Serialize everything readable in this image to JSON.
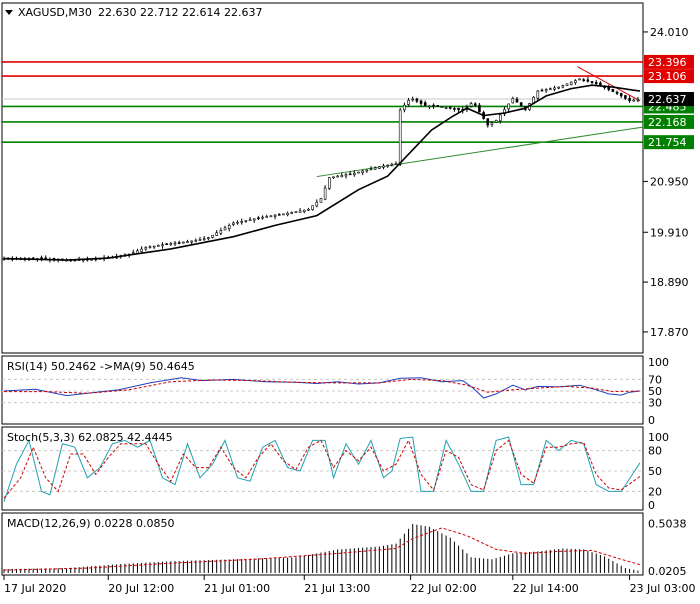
{
  "header": {
    "symbol_label": "XAGUSD,M30",
    "ohlc_label": "22.630 22.712 22.614 22.637"
  },
  "colors": {
    "background": "#ffffff",
    "frame": "#000000",
    "grid": "#c8c8c8",
    "candle": "#000000",
    "ma": "#000000",
    "resistance": "#e00000",
    "support": "#008000",
    "support_trend": "#2e8b2e",
    "resistance_trend": "#e00000",
    "rsi": "#1f3fbf",
    "rsi_ma": "#d00000",
    "stoch_main": "#20a0b0",
    "stoch_signal": "#d00000",
    "macd_hist": "#000000",
    "macd_signal": "#d00000",
    "price_tag_text": "#ffffff",
    "label_text": "#000000"
  },
  "chart_data": [
    {
      "type": "candlestick",
      "panel": "price",
      "y_ticks": [
        "24.010",
        "20.950",
        "19.910",
        "18.890",
        "17.870"
      ],
      "y_tick_values": [
        24.01,
        20.95,
        19.91,
        18.89,
        17.87
      ],
      "ylim": [
        17.5,
        24.5
      ],
      "x_tick_labels": [
        "17 Jul 2020",
        "20 Jul 12:00",
        "21 Jul 01:00",
        "21 Jul 13:00",
        "22 Jul 02:00",
        "22 Jul 14:00",
        "23 Jul 03:00"
      ],
      "x_tick_index": [
        0,
        50,
        96,
        144,
        195,
        244,
        300
      ],
      "bar_count": 305,
      "close_path": [
        [
          0,
          19.37
        ],
        [
          18,
          19.37
        ],
        [
          28,
          19.34
        ],
        [
          40,
          19.35
        ],
        [
          52,
          19.4
        ],
        [
          60,
          19.46
        ],
        [
          68,
          19.6
        ],
        [
          78,
          19.67
        ],
        [
          90,
          19.73
        ],
        [
          98,
          19.8
        ],
        [
          110,
          20.1
        ],
        [
          124,
          20.22
        ],
        [
          136,
          20.3
        ],
        [
          146,
          20.38
        ],
        [
          152,
          20.6
        ],
        [
          156,
          21.03
        ],
        [
          168,
          21.12
        ],
        [
          180,
          21.25
        ],
        [
          188,
          21.32
        ],
        [
          190,
          22.41
        ],
        [
          195,
          22.66
        ],
        [
          202,
          22.5
        ],
        [
          210,
          22.48
        ],
        [
          220,
          22.4
        ],
        [
          225,
          22.58
        ],
        [
          232,
          22.1
        ],
        [
          236,
          22.2
        ],
        [
          244,
          22.65
        ],
        [
          250,
          22.42
        ],
        [
          256,
          22.8
        ],
        [
          266,
          22.88
        ],
        [
          276,
          23.05
        ],
        [
          284,
          22.95
        ],
        [
          294,
          22.75
        ],
        [
          300,
          22.6
        ],
        [
          305,
          22.637
        ]
      ],
      "moving_average": [
        [
          0,
          19.37
        ],
        [
          30,
          19.34
        ],
        [
          50,
          19.38
        ],
        [
          80,
          19.57
        ],
        [
          110,
          19.82
        ],
        [
          130,
          20.05
        ],
        [
          150,
          20.25
        ],
        [
          170,
          20.78
        ],
        [
          184,
          21.06
        ],
        [
          195,
          21.55
        ],
        [
          205,
          22.0
        ],
        [
          215,
          22.28
        ],
        [
          222,
          22.45
        ],
        [
          230,
          22.3
        ],
        [
          240,
          22.35
        ],
        [
          250,
          22.45
        ],
        [
          260,
          22.7
        ],
        [
          272,
          22.85
        ],
        [
          282,
          22.92
        ],
        [
          292,
          22.88
        ],
        [
          305,
          22.8
        ]
      ],
      "horizontal_levels": [
        {
          "label": "23.396",
          "value": 23.396,
          "kind": "resistance"
        },
        {
          "label": "23.106",
          "value": 23.106,
          "kind": "resistance"
        },
        {
          "label": "22.485",
          "value": 22.485,
          "kind": "support"
        },
        {
          "label": "22.168",
          "value": 22.168,
          "kind": "support"
        },
        {
          "label": "21.754",
          "value": 21.754,
          "kind": "support"
        }
      ],
      "current_price": {
        "label": "22.637",
        "value": 22.637
      },
      "trend_lines": [
        {
          "kind": "support_trend",
          "from": [
            150,
            21.05
          ],
          "to": [
            320,
            22.15
          ]
        },
        {
          "kind": "resistance_trend",
          "from": [
            275,
            23.3
          ],
          "to": [
            305,
            22.6
          ]
        }
      ]
    },
    {
      "type": "line",
      "panel": "rsi",
      "title": "RSI(14) 50.2462  ->MA(9) 50.4645",
      "y_ticks": [
        "100",
        "70",
        "50",
        "30",
        "0"
      ],
      "y_tick_values": [
        100,
        70,
        50,
        30,
        0
      ],
      "ylim": [
        0,
        100
      ],
      "series": [
        {
          "role": "rsi",
          "values": [
            [
              0,
              50
            ],
            [
              15,
              53
            ],
            [
              30,
              42
            ],
            [
              40,
              46
            ],
            [
              55,
              52
            ],
            [
              70,
              64
            ],
            [
              85,
              73
            ],
            [
              95,
              68
            ],
            [
              110,
              70
            ],
            [
              125,
              66
            ],
            [
              140,
              65
            ],
            [
              150,
              63
            ],
            [
              160,
              66
            ],
            [
              170,
              62
            ],
            [
              180,
              64
            ],
            [
              190,
              72
            ],
            [
              200,
              73
            ],
            [
              210,
              66
            ],
            [
              220,
              68
            ],
            [
              225,
              55
            ],
            [
              230,
              38
            ],
            [
              236,
              45
            ],
            [
              244,
              60
            ],
            [
              250,
              52
            ],
            [
              256,
              58
            ],
            [
              266,
              57
            ],
            [
              276,
              60
            ],
            [
              284,
              52
            ],
            [
              290,
              45
            ],
            [
              296,
              43
            ],
            [
              300,
              48
            ],
            [
              305,
              50
            ]
          ]
        },
        {
          "role": "rsi_ma",
          "values": [
            [
              0,
              49
            ],
            [
              20,
              49
            ],
            [
              40,
              46
            ],
            [
              60,
              52
            ],
            [
              80,
              66
            ],
            [
              100,
              69
            ],
            [
              120,
              68
            ],
            [
              140,
              65
            ],
            [
              160,
              64
            ],
            [
              180,
              64
            ],
            [
              195,
              70
            ],
            [
              210,
              68
            ],
            [
              222,
              60
            ],
            [
              232,
              48
            ],
            [
              244,
              52
            ],
            [
              256,
              55
            ],
            [
              270,
              58
            ],
            [
              282,
              55
            ],
            [
              292,
              49
            ],
            [
              305,
              50
            ]
          ]
        }
      ]
    },
    {
      "type": "line",
      "panel": "stoch",
      "title": "Stoch(5,3,3) 62.0825  42.4445",
      "y_ticks": [
        "100",
        "80",
        "50",
        "20",
        "0"
      ],
      "y_tick_values": [
        100,
        80,
        50,
        20,
        0
      ],
      "ylim": [
        0,
        100
      ],
      "series": [
        {
          "role": "main",
          "values": [
            [
              0,
              5
            ],
            [
              6,
              60
            ],
            [
              12,
              95
            ],
            [
              18,
              20
            ],
            [
              22,
              15
            ],
            [
              28,
              90
            ],
            [
              34,
              85
            ],
            [
              40,
              40
            ],
            [
              46,
              55
            ],
            [
              52,
              90
            ],
            [
              58,
              95
            ],
            [
              64,
              85
            ],
            [
              70,
              95
            ],
            [
              76,
              40
            ],
            [
              82,
              30
            ],
            [
              88,
              90
            ],
            [
              94,
              40
            ],
            [
              100,
              60
            ],
            [
              106,
              95
            ],
            [
              112,
              40
            ],
            [
              118,
              35
            ],
            [
              124,
              85
            ],
            [
              130,
              95
            ],
            [
              136,
              55
            ],
            [
              142,
              50
            ],
            [
              148,
              95
            ],
            [
              154,
              95
            ],
            [
              158,
              40
            ],
            [
              164,
              90
            ],
            [
              170,
              60
            ],
            [
              176,
              95
            ],
            [
              182,
              40
            ],
            [
              186,
              50
            ],
            [
              190,
              98
            ],
            [
              196,
              100
            ],
            [
              200,
              20
            ],
            [
              206,
              20
            ],
            [
              212,
              95
            ],
            [
              218,
              60
            ],
            [
              224,
              20
            ],
            [
              230,
              20
            ],
            [
              236,
              95
            ],
            [
              242,
              100
            ],
            [
              248,
              30
            ],
            [
              254,
              30
            ],
            [
              260,
              95
            ],
            [
              266,
              80
            ],
            [
              272,
              95
            ],
            [
              278,
              90
            ],
            [
              284,
              30
            ],
            [
              290,
              20
            ],
            [
              296,
              20
            ],
            [
              305,
              62
            ]
          ]
        },
        {
          "role": "signal",
          "values": [
            [
              0,
              10
            ],
            [
              8,
              40
            ],
            [
              14,
              85
            ],
            [
              20,
              40
            ],
            [
              26,
              20
            ],
            [
              32,
              75
            ],
            [
              38,
              75
            ],
            [
              44,
              45
            ],
            [
              50,
              70
            ],
            [
              56,
              90
            ],
            [
              62,
              90
            ],
            [
              68,
              90
            ],
            [
              74,
              60
            ],
            [
              80,
              35
            ],
            [
              86,
              75
            ],
            [
              92,
              55
            ],
            [
              98,
              55
            ],
            [
              104,
              85
            ],
            [
              110,
              55
            ],
            [
              116,
              40
            ],
            [
              122,
              70
            ],
            [
              128,
              90
            ],
            [
              134,
              65
            ],
            [
              140,
              52
            ],
            [
              146,
              85
            ],
            [
              152,
              95
            ],
            [
              158,
              55
            ],
            [
              164,
              80
            ],
            [
              170,
              65
            ],
            [
              176,
              85
            ],
            [
              182,
              50
            ],
            [
              188,
              60
            ],
            [
              194,
              95
            ],
            [
              200,
              45
            ],
            [
              206,
              22
            ],
            [
              212,
              80
            ],
            [
              218,
              70
            ],
            [
              224,
              30
            ],
            [
              230,
              22
            ],
            [
              236,
              80
            ],
            [
              242,
              95
            ],
            [
              248,
              45
            ],
            [
              254,
              32
            ],
            [
              260,
              85
            ],
            [
              266,
              85
            ],
            [
              272,
              90
            ],
            [
              278,
              92
            ],
            [
              284,
              45
            ],
            [
              290,
              25
            ],
            [
              296,
              22
            ],
            [
              305,
              42
            ]
          ]
        }
      ]
    },
    {
      "type": "bar",
      "panel": "macd",
      "title": "MACD(12,26,9) 0.0228  0.0850",
      "y_ticks": [
        "0.5038",
        "0.0205"
      ],
      "y_tick_values": [
        0.5038,
        0.0205
      ],
      "ylim": [
        0,
        0.54
      ],
      "histogram": [
        [
          0,
          0.04
        ],
        [
          30,
          0.05
        ],
        [
          55,
          0.09
        ],
        [
          80,
          0.12
        ],
        [
          110,
          0.14
        ],
        [
          140,
          0.16
        ],
        [
          160,
          0.24
        ],
        [
          180,
          0.27
        ],
        [
          188,
          0.3
        ],
        [
          196,
          0.5
        ],
        [
          204,
          0.47
        ],
        [
          214,
          0.36
        ],
        [
          224,
          0.16
        ],
        [
          234,
          0.14
        ],
        [
          244,
          0.2
        ],
        [
          256,
          0.22
        ],
        [
          268,
          0.25
        ],
        [
          278,
          0.24
        ],
        [
          288,
          0.17
        ],
        [
          298,
          0.05
        ],
        [
          305,
          0.02
        ]
      ],
      "signal": [
        [
          0,
          0.03
        ],
        [
          40,
          0.05
        ],
        [
          80,
          0.1
        ],
        [
          120,
          0.14
        ],
        [
          160,
          0.2
        ],
        [
          188,
          0.25
        ],
        [
          196,
          0.35
        ],
        [
          210,
          0.46
        ],
        [
          222,
          0.38
        ],
        [
          236,
          0.24
        ],
        [
          250,
          0.2
        ],
        [
          266,
          0.22
        ],
        [
          282,
          0.23
        ],
        [
          296,
          0.14
        ],
        [
          305,
          0.085
        ]
      ]
    }
  ]
}
